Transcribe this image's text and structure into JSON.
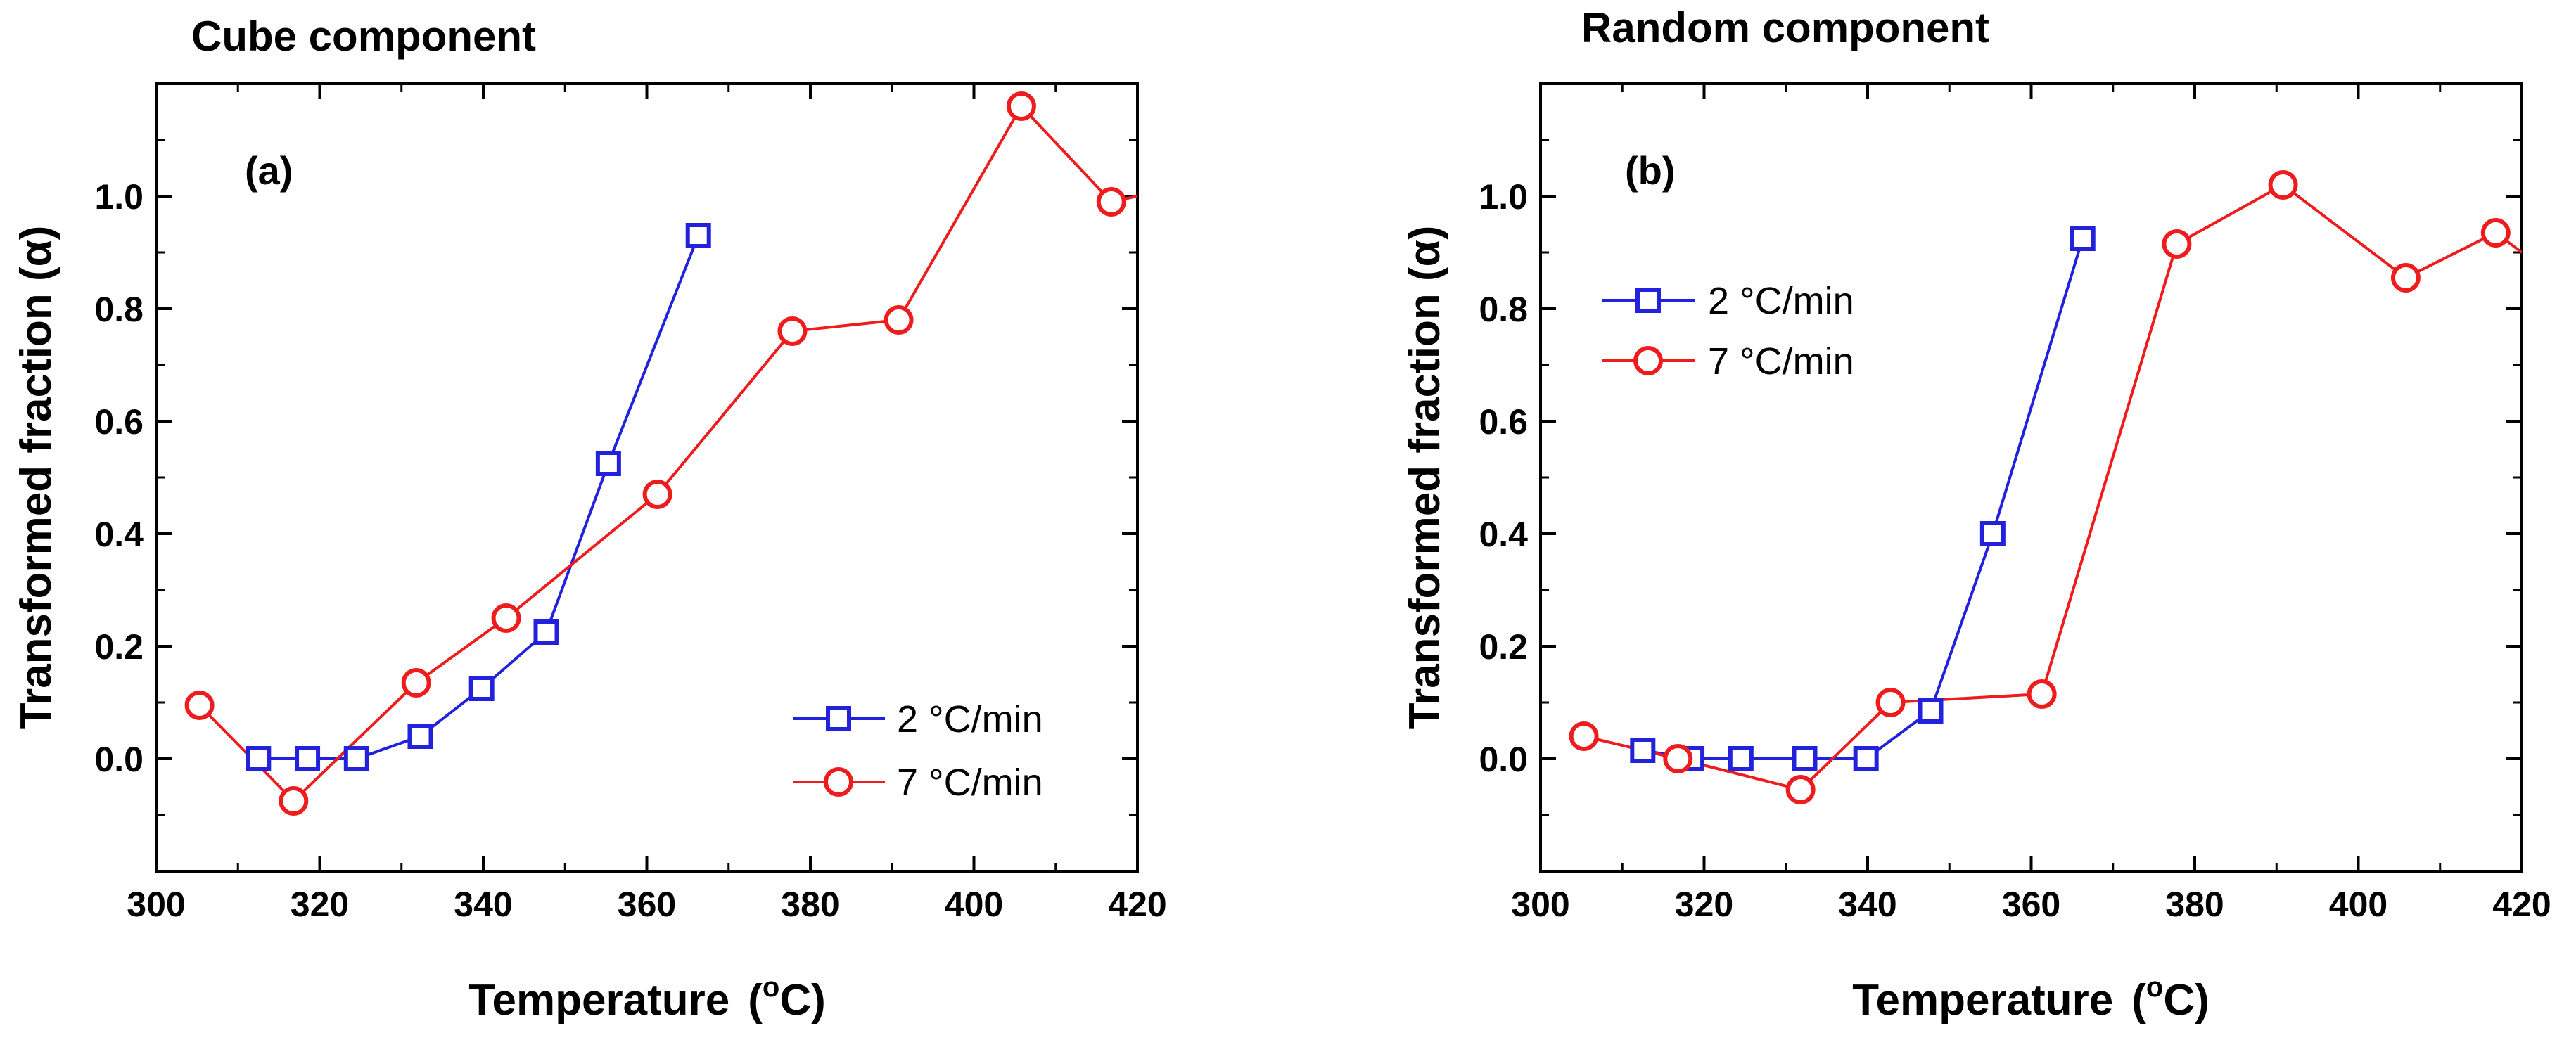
{
  "chart_data": [
    {
      "type": "line",
      "title": "Cube component",
      "panel_label": "(a)",
      "xlabel": "Temperature",
      "xlabel_unit": "(°C)",
      "ylabel": "Transformed fraction (α)",
      "xlim": [
        300,
        420
      ],
      "ylim": [
        -0.2,
        1.2
      ],
      "xticks": [
        300,
        320,
        340,
        360,
        380,
        400,
        420
      ],
      "yticks": [
        0.0,
        0.2,
        0.4,
        0.6,
        0.8,
        1.0
      ],
      "ytick_labels": [
        "0.0",
        "0.2",
        "0.4",
        "0.6",
        "0.8",
        "1.0"
      ],
      "grid": false,
      "legend_position": "bottom-right",
      "series": [
        {
          "name": "2 °C/min",
          "marker": "square",
          "color": "#2222dd",
          "x": [
            312.5,
            318.5,
            324.5,
            332.3,
            339.8,
            347.7,
            355.3,
            366.3
          ],
          "y": [
            0.0,
            0.0,
            0.0,
            0.04,
            0.125,
            0.225,
            0.525,
            0.93
          ]
        },
        {
          "name": "7 °C/min",
          "marker": "circle",
          "color": "#ee1c1c",
          "x": [
            305.3,
            316.8,
            331.8,
            342.8,
            361.3,
            377.8,
            390.8,
            405.8,
            416.8,
            420
          ],
          "y": [
            0.095,
            -0.075,
            0.135,
            0.25,
            0.47,
            0.76,
            0.78,
            1.16,
            0.99,
            1.0
          ]
        }
      ]
    },
    {
      "type": "line",
      "title": "Random component",
      "panel_label": "(b)",
      "xlabel": "Temperature",
      "xlabel_unit": "(°C)",
      "ylabel": "Transformed fraction (α)",
      "xlim": [
        300,
        420
      ],
      "ylim": [
        -0.2,
        1.2
      ],
      "xticks": [
        300,
        320,
        340,
        360,
        380,
        400,
        420
      ],
      "yticks": [
        0.0,
        0.2,
        0.4,
        0.6,
        0.8,
        1.0
      ],
      "ytick_labels": [
        "0.0",
        "0.2",
        "0.4",
        "0.6",
        "0.8",
        "1.0"
      ],
      "grid": false,
      "legend_position": "top-left",
      "series": [
        {
          "name": "2 °C/min",
          "marker": "square",
          "color": "#2222dd",
          "x": [
            312.5,
            318.5,
            324.5,
            332.3,
            339.8,
            347.7,
            355.3,
            366.3
          ],
          "y": [
            0.015,
            0.0,
            0.0,
            0.0,
            0.0,
            0.085,
            0.4,
            0.925
          ]
        },
        {
          "name": "7 °C/min",
          "marker": "circle",
          "color": "#ee1c1c",
          "x": [
            305.3,
            316.8,
            331.8,
            342.8,
            361.3,
            377.8,
            390.8,
            405.8,
            416.8,
            420
          ],
          "y": [
            0.04,
            0.0,
            -0.055,
            0.1,
            0.115,
            0.915,
            1.02,
            0.855,
            0.935,
            0.9
          ]
        }
      ]
    }
  ]
}
